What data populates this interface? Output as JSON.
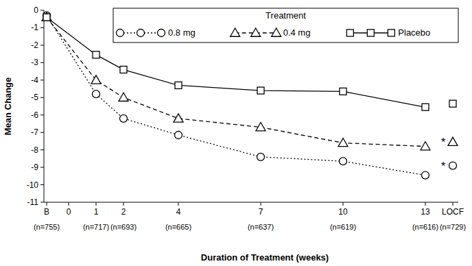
{
  "chart_data": {
    "type": "line",
    "x_label": "Duration of Treatment (weeks)",
    "y_label": "Mean Change",
    "x": [
      -0.8,
      1,
      2,
      4,
      7,
      10,
      13,
      14,
      14
    ],
    "xlim": [
      -0.9,
      14.2
    ],
    "xticks": [
      {
        "value": -0.8,
        "label": "B"
      },
      0,
      1,
      2,
      4,
      7,
      10,
      13,
      {
        "value": 14,
        "label": "LOCF"
      }
    ],
    "ylim": [
      -11,
      0
    ],
    "yticks": [
      0,
      -1,
      -2,
      -3,
      -4,
      -5,
      -6,
      -7,
      -8,
      -9,
      -10,
      -11
    ],
    "grid": false,
    "legend": "upper right",
    "legend_title": "Treatment",
    "series": [
      {
        "name": "0.8 mg",
        "color": "#000000",
        "marker": "circle",
        "line_style": "dotted",
        "values": [
          -0.3,
          -4.8,
          -6.2,
          -7.15,
          -8.4,
          -8.65,
          -9.45,
          null,
          -8.9
        ]
      },
      {
        "name": "0.4 mg",
        "color": "#000000",
        "marker": "triangle",
        "line_style": "dashed",
        "values": [
          -0.4,
          -4.0,
          -5.0,
          -6.2,
          -6.7,
          -7.6,
          -7.8,
          null,
          -7.55
        ]
      },
      {
        "name": "Placebo",
        "color": "#000000",
        "marker": "square",
        "line_style": "solid",
        "values": [
          -0.4,
          -2.55,
          -3.4,
          -4.3,
          -4.6,
          -4.65,
          -5.55,
          null,
          -5.35
        ]
      }
    ],
    "sample_sizes": [
      {
        "x": -0.8,
        "label": "(n=755)"
      },
      {
        "x": 1,
        "label": "(n=717)"
      },
      {
        "x": 2,
        "label": "(n=693)"
      },
      {
        "x": 4,
        "label": "(n=665)"
      },
      {
        "x": 7,
        "label": "(n=637)"
      },
      {
        "x": 10,
        "label": "(n=619)"
      },
      {
        "x": 13,
        "label": "(n=616)"
      },
      {
        "x": 14,
        "label": "(n=729)"
      }
    ],
    "annotations": [
      {
        "text": "*",
        "x": 14,
        "y": -7.55
      },
      {
        "text": "*",
        "x": 14,
        "y": -8.9
      }
    ]
  }
}
